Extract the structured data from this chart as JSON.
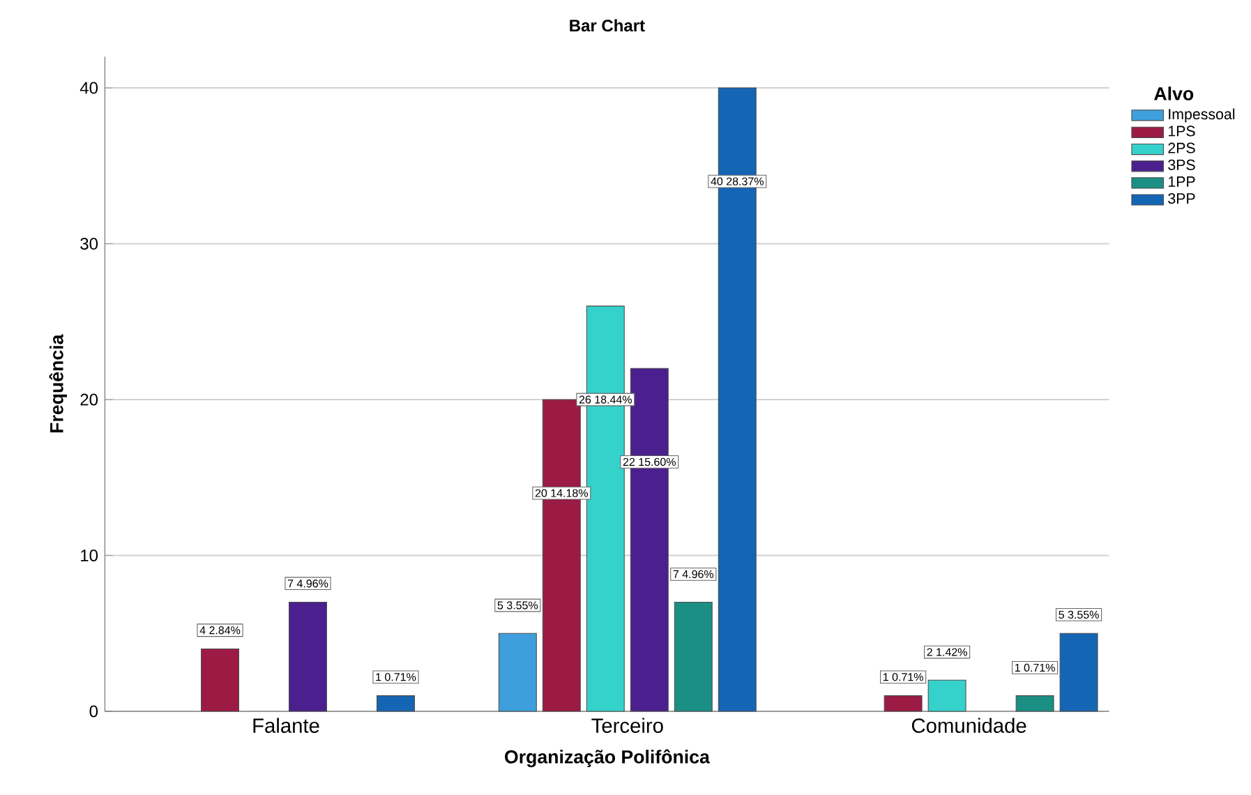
{
  "chart_data": {
    "type": "bar",
    "title": "Bar Chart",
    "xlabel": "Organização Polifônica",
    "ylabel": "Frequência",
    "legend_title": "Alvo",
    "categories": [
      "Falante",
      "Terceiro",
      "Comunidade"
    ],
    "series": [
      {
        "name": "Impessoal",
        "color": "#3e9fdc",
        "values": [
          null,
          5,
          null
        ],
        "value_labels": [
          null,
          "5 3.55%",
          null
        ]
      },
      {
        "name": "1PS",
        "color": "#9b1b45",
        "values": [
          4,
          20,
          1
        ],
        "value_labels": [
          "4 2.84%",
          "20 14.18%",
          "1 0.71%"
        ]
      },
      {
        "name": "2PS",
        "color": "#35d2cc",
        "values": [
          null,
          26,
          2
        ],
        "value_labels": [
          null,
          "26 18.44%",
          "2 1.42%"
        ]
      },
      {
        "name": "3PS",
        "color": "#4b1f8e",
        "values": [
          7,
          22,
          null
        ],
        "value_labels": [
          "7 4.96%",
          "22 15.60%",
          null
        ]
      },
      {
        "name": "1PP",
        "color": "#1b8f84",
        "values": [
          null,
          7,
          1
        ],
        "value_labels": [
          null,
          "7 4.96%",
          "1 0.71%"
        ]
      },
      {
        "name": "3PP",
        "color": "#1565b5",
        "values": [
          1,
          40,
          5
        ],
        "value_labels": [
          "1 0.71%",
          "40 28.37%",
          "5 3.55%"
        ]
      }
    ],
    "ylim": [
      0,
      42
    ],
    "yticks": [
      0,
      10,
      20,
      30,
      40
    ],
    "grid": "y",
    "legend": "top right"
  }
}
